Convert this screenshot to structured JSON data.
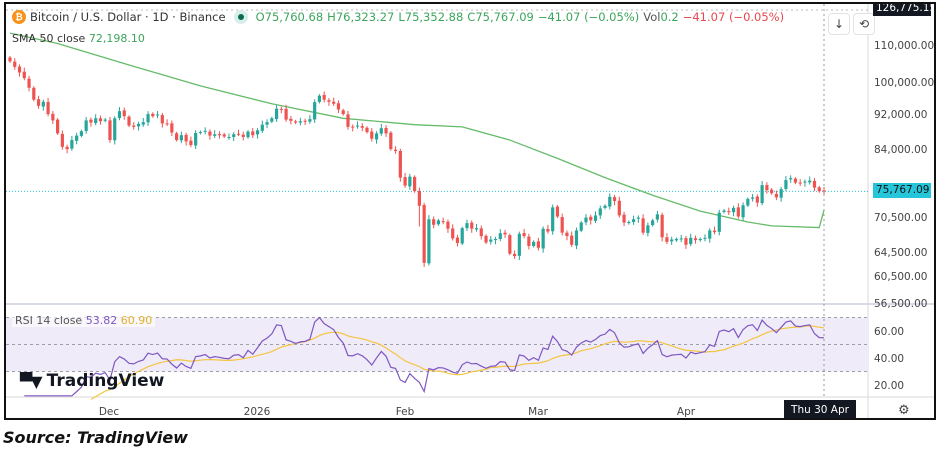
{
  "header": {
    "symbol_title": "Bitcoin / U.S. Dollar · 1D · Binance",
    "open": "O75,760.68",
    "high": "H76,323.27",
    "low": "L75,352.88",
    "close": "C75,767.09",
    "change": "−41.07 (−0.05%)",
    "vol_label": "Vol",
    "vol_value": "0.2",
    "vol_change": "−41.07 (−0.05%)"
  },
  "sma": {
    "label": "SMA 50 close",
    "value": "72,198.10",
    "color": "#66bb6a"
  },
  "rsi": {
    "label": "RSI 14 close",
    "value": "53.82",
    "ma_value": "60.90",
    "color": "#7e57c2",
    "ma_color": "#f5c542",
    "axis": [
      "60.00",
      "40.00",
      "20.00"
    ]
  },
  "price_axis": {
    "top_label": "126,775.15",
    "ticks": [
      "110,000.00",
      "100,000.00",
      "92,000.00",
      "84,000.00",
      "70,500.00",
      "64,500.00",
      "60,500.00",
      "56,500.00"
    ],
    "current": "75,767.09",
    "current_color": "#26c6da"
  },
  "time_axis": {
    "labels": [
      "Dec",
      "2026",
      "Feb",
      "Mar",
      "Apr"
    ],
    "crosshair": "Thu 30 Apr '26"
  },
  "toolbar": {
    "scroll_icon": "arrow-down-icon",
    "reset_icon": "reset-icon",
    "settings_icon": "gear-icon"
  },
  "logo": "TradingView",
  "source": "Source: TradingView",
  "colors": {
    "up": "#26a69a",
    "down": "#ef5350"
  },
  "chart_data": {
    "type": "candlestick",
    "start": "2025-11-10",
    "end": "2026-04-30",
    "closes": [
      106000,
      104500,
      103000,
      101500,
      99000,
      96000,
      94500,
      95500,
      92500,
      91000,
      88000,
      85000,
      84500,
      86500,
      87500,
      88500,
      91000,
      90500,
      91500,
      90800,
      91200,
      86500,
      91500,
      93200,
      92000,
      89800,
      89500,
      90200,
      90600,
      92500,
      92000,
      92400,
      90300,
      90200,
      88200,
      86500,
      87600,
      86200,
      85400,
      88100,
      88300,
      88600,
      87500,
      87800,
      87600,
      87300,
      87200,
      87800,
      87900,
      87200,
      88400,
      87600,
      88700,
      90000,
      90600,
      91500,
      93800,
      93700,
      91200,
      90900,
      90500,
      90800,
      90900,
      91300,
      95400,
      97000,
      96000,
      95500,
      95000,
      93600,
      92500,
      89500,
      89400,
      89800,
      89300,
      88300,
      86800,
      88000,
      89200,
      88000,
      84500,
      84100,
      78500,
      76900,
      78700,
      75800,
      73000,
      63000,
      70500,
      69500,
      70300,
      70100,
      68800,
      67100,
      66300,
      68900,
      69800,
      68800,
      68900,
      67500,
      66400,
      66900,
      67000,
      68000,
      67800,
      64500,
      64100,
      67900,
      67500,
      65800,
      66500,
      65500,
      68800,
      68300,
      72700,
      71000,
      68100,
      67500,
      66000,
      68500,
      69900,
      70800,
      70300,
      71200,
      72500,
      73000,
      74700,
      73900,
      71200,
      69900,
      70000,
      70500,
      70800,
      68100,
      69400,
      70300,
      71400,
      67300,
      66500,
      66900,
      67000,
      67100,
      66000,
      67200,
      66800,
      67000,
      67200,
      68500,
      68200,
      71700,
      72100,
      71800,
      72600,
      71000,
      73100,
      74300,
      74600,
      73600,
      77000,
      76000,
      75400,
      74600,
      76200,
      78000,
      78400,
      77500,
      77400,
      77700,
      77900,
      76500,
      75800,
      75767
    ],
    "sma50_points": [
      [
        0,
        114000
      ],
      [
        10,
        111000
      ],
      [
        25,
        105000
      ],
      [
        40,
        99500
      ],
      [
        55,
        95000
      ],
      [
        70,
        91500
      ],
      [
        85,
        90000
      ],
      [
        95,
        89500
      ],
      [
        105,
        86500
      ],
      [
        115,
        82500
      ],
      [
        125,
        78500
      ],
      [
        135,
        75000
      ],
      [
        145,
        72000
      ],
      [
        155,
        70000
      ],
      [
        160,
        69300
      ],
      [
        170,
        69000
      ],
      [
        180,
        70000
      ],
      [
        190,
        71300
      ],
      [
        200,
        72198
      ]
    ],
    "rsi_period": 14,
    "rsi_ma_period": 14,
    "ylim_price": [
      56500,
      126775
    ],
    "ylim_rsi": [
      10,
      80
    ]
  }
}
